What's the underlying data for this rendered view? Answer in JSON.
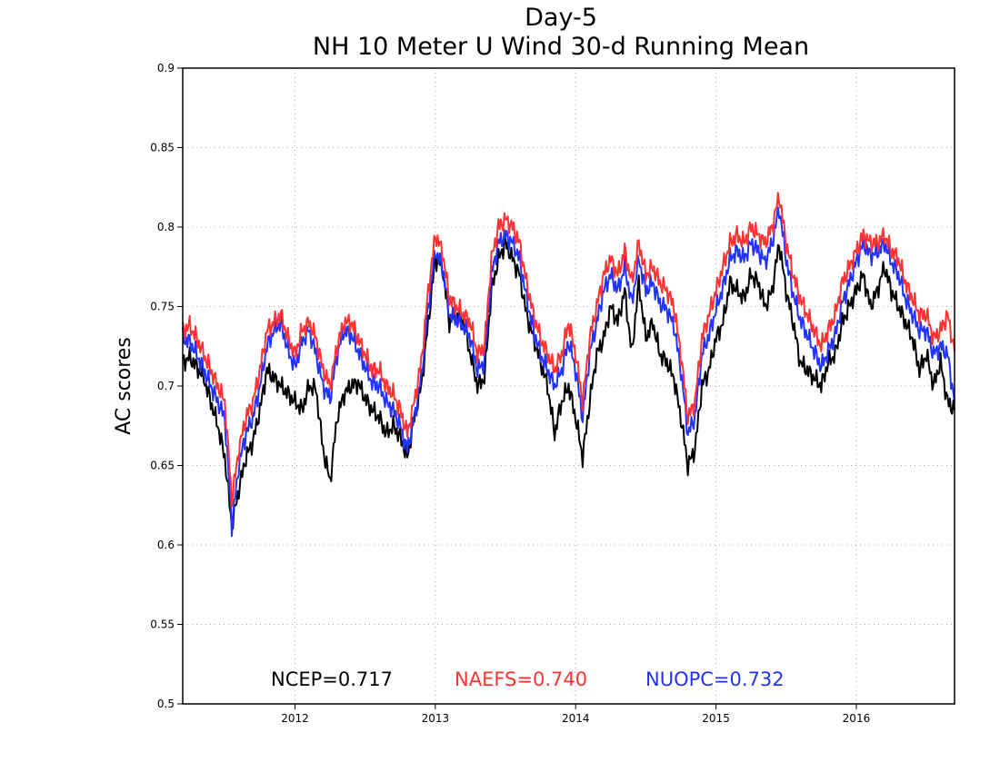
{
  "chart_data": {
    "type": "line",
    "title": "Day-5",
    "subtitle": "NH 10 Meter U Wind 30-d Running Mean",
    "xlabel": "",
    "ylabel": "AC scores",
    "ylim": [
      0.5,
      0.9
    ],
    "xlim": [
      2011.2,
      2016.7
    ],
    "yticks": [
      "0.5",
      "0.55",
      "0.6",
      "0.65",
      "0.7",
      "0.75",
      "0.8",
      "0.85",
      "0.9"
    ],
    "xticks": [
      "2012",
      "2013",
      "2014",
      "2015",
      "2016"
    ],
    "grid": true,
    "legend_placement": "bottom",
    "legend": [
      {
        "text": "NCEP=0.717",
        "color": "#000000"
      },
      {
        "text": "NAEFS=0.740",
        "color": "#ff3333"
      },
      {
        "text": "NUOPC=0.732",
        "color": "#2233ff"
      }
    ],
    "x": [
      2011.2,
      2011.25,
      2011.3,
      2011.35,
      2011.4,
      2011.45,
      2011.5,
      2011.55,
      2011.6,
      2011.65,
      2011.7,
      2011.75,
      2011.8,
      2011.85,
      2011.9,
      2011.95,
      2012.0,
      2012.05,
      2012.1,
      2012.15,
      2012.2,
      2012.25,
      2012.3,
      2012.35,
      2012.4,
      2012.45,
      2012.5,
      2012.55,
      2012.6,
      2012.65,
      2012.7,
      2012.75,
      2012.8,
      2012.85,
      2012.9,
      2012.95,
      2013.0,
      2013.05,
      2013.1,
      2013.15,
      2013.2,
      2013.25,
      2013.3,
      2013.35,
      2013.4,
      2013.45,
      2013.5,
      2013.55,
      2013.6,
      2013.65,
      2013.7,
      2013.75,
      2013.8,
      2013.85,
      2013.9,
      2013.95,
      2014.0,
      2014.05,
      2014.1,
      2014.15,
      2014.2,
      2014.25,
      2014.3,
      2014.35,
      2014.4,
      2014.45,
      2014.5,
      2014.55,
      2014.6,
      2014.65,
      2014.7,
      2014.75,
      2014.8,
      2014.85,
      2014.9,
      2014.95,
      2015.0,
      2015.05,
      2015.1,
      2015.15,
      2015.2,
      2015.25,
      2015.3,
      2015.35,
      2015.4,
      2015.45,
      2015.5,
      2015.55,
      2015.6,
      2015.65,
      2015.7,
      2015.75,
      2015.8,
      2015.85,
      2015.9,
      2015.95,
      2016.0,
      2016.05,
      2016.1,
      2016.15,
      2016.2,
      2016.25,
      2016.3,
      2016.35,
      2016.4,
      2016.45,
      2016.5,
      2016.55,
      2016.6,
      2016.65,
      2016.7
    ],
    "series": [
      {
        "name": "NCEP",
        "color": "#000000",
        "values": [
          0.715,
          0.718,
          0.712,
          0.705,
          0.69,
          0.675,
          0.655,
          0.612,
          0.635,
          0.655,
          0.665,
          0.685,
          0.71,
          0.705,
          0.7,
          0.695,
          0.69,
          0.685,
          0.7,
          0.698,
          0.66,
          0.64,
          0.68,
          0.695,
          0.7,
          0.702,
          0.692,
          0.685,
          0.68,
          0.67,
          0.675,
          0.668,
          0.655,
          0.68,
          0.7,
          0.74,
          0.78,
          0.775,
          0.74,
          0.745,
          0.74,
          0.72,
          0.7,
          0.705,
          0.76,
          0.78,
          0.79,
          0.78,
          0.77,
          0.745,
          0.73,
          0.715,
          0.7,
          0.67,
          0.69,
          0.7,
          0.68,
          0.655,
          0.69,
          0.72,
          0.73,
          0.75,
          0.74,
          0.76,
          0.72,
          0.765,
          0.73,
          0.74,
          0.72,
          0.715,
          0.705,
          0.68,
          0.65,
          0.66,
          0.7,
          0.71,
          0.73,
          0.74,
          0.765,
          0.76,
          0.755,
          0.77,
          0.765,
          0.75,
          0.76,
          0.79,
          0.76,
          0.74,
          0.715,
          0.71,
          0.705,
          0.7,
          0.715,
          0.72,
          0.74,
          0.75,
          0.76,
          0.77,
          0.75,
          0.76,
          0.775,
          0.76,
          0.75,
          0.74,
          0.73,
          0.71,
          0.72,
          0.7,
          0.715,
          0.69,
          0.685
        ]
      },
      {
        "name": "NAEFS",
        "color": "#ff3333",
        "values": [
          0.735,
          0.738,
          0.73,
          0.72,
          0.71,
          0.7,
          0.69,
          0.628,
          0.66,
          0.68,
          0.69,
          0.71,
          0.735,
          0.74,
          0.745,
          0.73,
          0.72,
          0.735,
          0.74,
          0.73,
          0.71,
          0.7,
          0.725,
          0.74,
          0.74,
          0.73,
          0.72,
          0.71,
          0.71,
          0.7,
          0.695,
          0.685,
          0.67,
          0.69,
          0.715,
          0.76,
          0.795,
          0.785,
          0.755,
          0.75,
          0.745,
          0.74,
          0.72,
          0.725,
          0.78,
          0.8,
          0.805,
          0.8,
          0.79,
          0.765,
          0.745,
          0.73,
          0.72,
          0.71,
          0.72,
          0.74,
          0.72,
          0.69,
          0.73,
          0.75,
          0.77,
          0.78,
          0.77,
          0.785,
          0.765,
          0.79,
          0.77,
          0.775,
          0.765,
          0.76,
          0.75,
          0.72,
          0.68,
          0.69,
          0.73,
          0.745,
          0.76,
          0.775,
          0.79,
          0.795,
          0.79,
          0.8,
          0.795,
          0.79,
          0.8,
          0.82,
          0.79,
          0.77,
          0.755,
          0.745,
          0.735,
          0.725,
          0.735,
          0.745,
          0.765,
          0.775,
          0.785,
          0.795,
          0.79,
          0.79,
          0.795,
          0.785,
          0.78,
          0.765,
          0.755,
          0.745,
          0.745,
          0.73,
          0.735,
          0.745,
          0.722
        ]
      },
      {
        "name": "NUOPC",
        "color": "#2233ff",
        "values": [
          0.73,
          0.728,
          0.72,
          0.71,
          0.7,
          0.69,
          0.68,
          0.612,
          0.65,
          0.67,
          0.68,
          0.7,
          0.725,
          0.735,
          0.74,
          0.722,
          0.712,
          0.728,
          0.735,
          0.72,
          0.7,
          0.692,
          0.72,
          0.735,
          0.732,
          0.722,
          0.712,
          0.702,
          0.7,
          0.69,
          0.685,
          0.675,
          0.66,
          0.68,
          0.705,
          0.75,
          0.785,
          0.775,
          0.745,
          0.742,
          0.738,
          0.73,
          0.71,
          0.715,
          0.77,
          0.79,
          0.795,
          0.79,
          0.78,
          0.755,
          0.735,
          0.72,
          0.71,
          0.7,
          0.71,
          0.728,
          0.71,
          0.68,
          0.72,
          0.74,
          0.76,
          0.77,
          0.76,
          0.775,
          0.752,
          0.78,
          0.76,
          0.765,
          0.752,
          0.748,
          0.738,
          0.71,
          0.67,
          0.68,
          0.72,
          0.732,
          0.748,
          0.762,
          0.78,
          0.785,
          0.78,
          0.79,
          0.785,
          0.778,
          0.79,
          0.812,
          0.78,
          0.758,
          0.742,
          0.732,
          0.722,
          0.712,
          0.722,
          0.732,
          0.752,
          0.765,
          0.778,
          0.79,
          0.782,
          0.784,
          0.79,
          0.778,
          0.77,
          0.755,
          0.745,
          0.735,
          0.735,
          0.72,
          0.725,
          0.72,
          0.69
        ]
      }
    ]
  }
}
